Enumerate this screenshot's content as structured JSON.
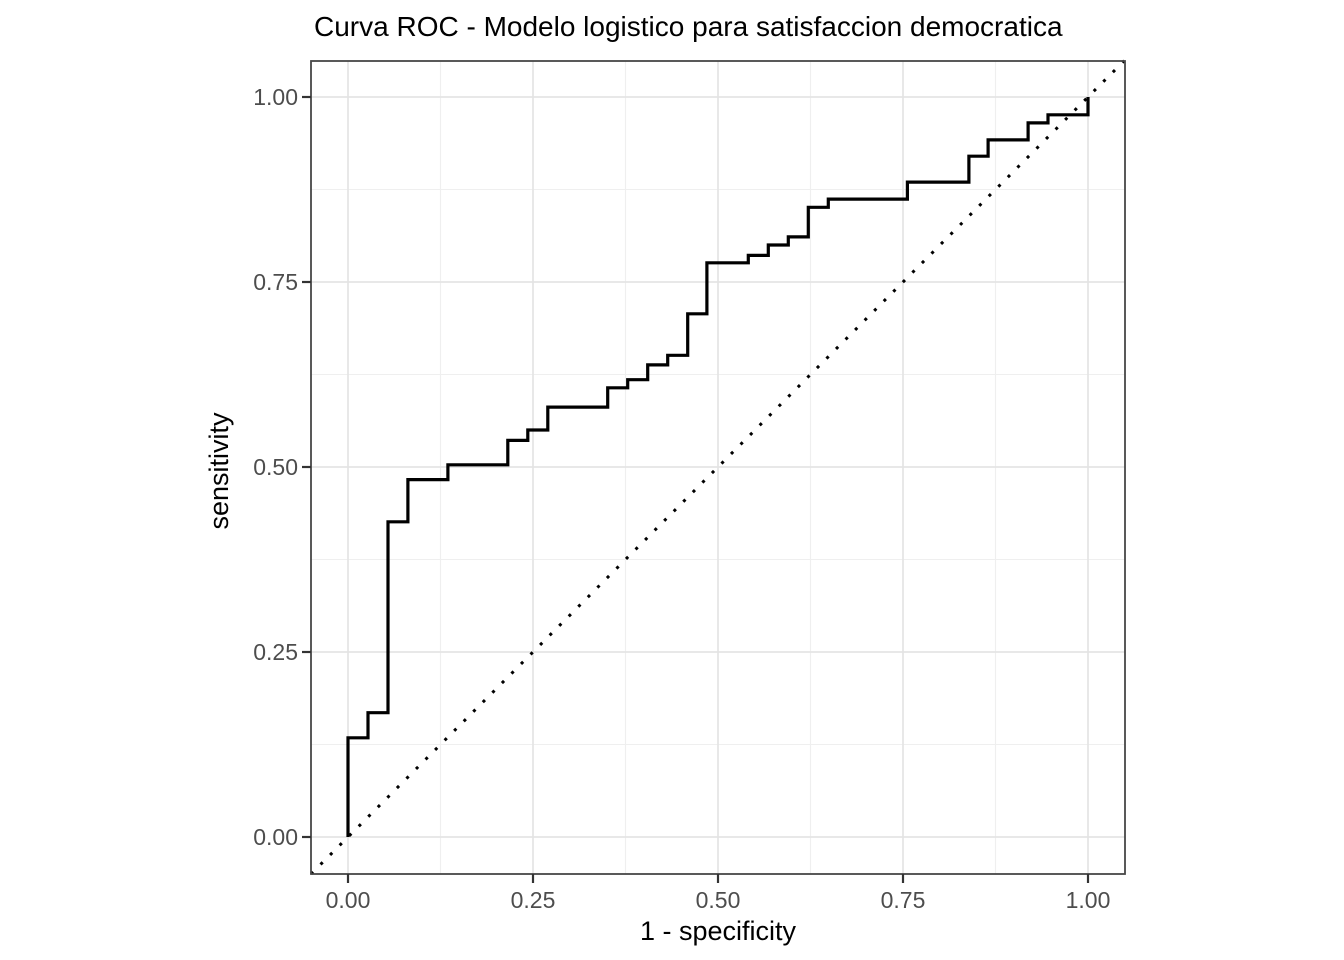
{
  "chart_data": {
    "type": "line",
    "subtype": "roc-step-curve",
    "title": "Curva ROC - Modelo logistico para satisfaccion democratica",
    "xlabel": "1 - specificity",
    "ylabel": "sensitivity",
    "xlim": [
      -0.05,
      1.05
    ],
    "ylim": [
      -0.05,
      1.05
    ],
    "grid": "on",
    "legend": "none",
    "x_ticks": [
      0,
      0.25,
      0.5,
      0.75,
      1
    ],
    "x_tick_labels": [
      "0.00",
      "0.25",
      "0.50",
      "0.75",
      "1.00"
    ],
    "y_ticks": [
      0,
      0.25,
      0.5,
      0.75,
      1
    ],
    "y_tick_labels": [
      "0.00",
      "0.25",
      "0.50",
      "0.75",
      "1.00"
    ],
    "minor_grid_positions": [
      0.125,
      0.375,
      0.625,
      0.875
    ],
    "series": [
      {
        "name": "roc-curve",
        "style": "solid-step",
        "color": "#000000",
        "points": [
          [
            0,
            0
          ],
          [
            0,
            0.134
          ],
          [
            0.027,
            0.134
          ],
          [
            0.027,
            0.168
          ],
          [
            0.054,
            0.168
          ],
          [
            0.054,
            0.426
          ],
          [
            0.081,
            0.426
          ],
          [
            0.081,
            0.483
          ],
          [
            0.135,
            0.483
          ],
          [
            0.135,
            0.503
          ],
          [
            0.216,
            0.503
          ],
          [
            0.216,
            0.536
          ],
          [
            0.243,
            0.536
          ],
          [
            0.243,
            0.55
          ],
          [
            0.27,
            0.55
          ],
          [
            0.27,
            0.581
          ],
          [
            0.351,
            0.581
          ],
          [
            0.351,
            0.607
          ],
          [
            0.378,
            0.607
          ],
          [
            0.378,
            0.618
          ],
          [
            0.405,
            0.618
          ],
          [
            0.405,
            0.638
          ],
          [
            0.432,
            0.638
          ],
          [
            0.432,
            0.651
          ],
          [
            0.459,
            0.651
          ],
          [
            0.459,
            0.707
          ],
          [
            0.485,
            0.707
          ],
          [
            0.485,
            0.776
          ],
          [
            0.541,
            0.776
          ],
          [
            0.541,
            0.786
          ],
          [
            0.568,
            0.786
          ],
          [
            0.568,
            0.8
          ],
          [
            0.595,
            0.8
          ],
          [
            0.595,
            0.811
          ],
          [
            0.622,
            0.811
          ],
          [
            0.622,
            0.851
          ],
          [
            0.649,
            0.851
          ],
          [
            0.649,
            0.862
          ],
          [
            0.756,
            0.862
          ],
          [
            0.756,
            0.885
          ],
          [
            0.839,
            0.885
          ],
          [
            0.839,
            0.92
          ],
          [
            0.865,
            0.92
          ],
          [
            0.865,
            0.942
          ],
          [
            0.919,
            0.942
          ],
          [
            0.919,
            0.965
          ],
          [
            0.946,
            0.965
          ],
          [
            0.946,
            0.976
          ],
          [
            1,
            0.976
          ],
          [
            1,
            1
          ]
        ]
      },
      {
        "name": "chance-diagonal",
        "style": "dotted",
        "color": "#000000",
        "points": [
          [
            -0.05,
            -0.05
          ],
          [
            1.049,
            1.049
          ]
        ]
      }
    ],
    "colors": {
      "background": "#FFFFFF",
      "panel_background": "#FFFFFF",
      "panel_border": "#474747",
      "grid_major": "#E4E4E4",
      "grid_minor": "#EFEFEF",
      "tick_mark": "#333333",
      "tick_label": "#4D4D4D",
      "title": "#000000",
      "axis_title": "#000000",
      "curve": "#000000"
    }
  }
}
